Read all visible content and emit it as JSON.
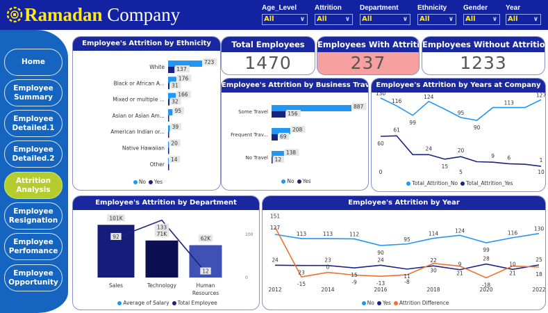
{
  "header": {
    "brand_part1": "Ramadan",
    "brand_part2": " Company",
    "slicers": [
      {
        "label": "Age_Level",
        "value": "All"
      },
      {
        "label": "Attrition",
        "value": "All"
      },
      {
        "label": "Department",
        "value": "All"
      },
      {
        "label": "Ethnicity",
        "value": "All"
      },
      {
        "label": "Gender",
        "value": "All"
      },
      {
        "label": "Year",
        "value": "All"
      }
    ]
  },
  "sidebar": {
    "items": [
      {
        "label": "Home"
      },
      {
        "label": "Employee Summary"
      },
      {
        "label": "Employee Detailed.1"
      },
      {
        "label": "Employee Detailed.2"
      },
      {
        "label": "Attrition Analysis",
        "active": true
      },
      {
        "label": "Employee Resignation"
      },
      {
        "label": "Employee Perfomance"
      },
      {
        "label": "Employee Opportunity"
      }
    ]
  },
  "kpis": [
    {
      "title": "Total Employees",
      "value": "1470"
    },
    {
      "title": "Employees With Attrition",
      "value": "237",
      "color": "#f7a0a0"
    },
    {
      "title": "Employees Without Attrition",
      "value": "1233"
    }
  ],
  "colors": {
    "no": "#2196f3",
    "yes": "#1a237e",
    "diff": "#f07030",
    "header": "#1222a0",
    "sidebar": "#1565c0",
    "active": "#b5cc2e"
  },
  "chart_data": [
    {
      "type": "bar",
      "orientation": "horizontal",
      "title": "Employee's Attrition by Ethnicity",
      "categories": [
        "White",
        "Black or African A...",
        "Mixed or multiple ...",
        "Asian or Asian Am...",
        "American Indian or...",
        "Native Hawaiian",
        "Other"
      ],
      "series": [
        {
          "name": "No",
          "values": [
            723,
            176,
            166,
            95,
            39,
            20,
            14
          ]
        },
        {
          "name": "Yes",
          "values": [
            137,
            31,
            32,
            null,
            null,
            null,
            null
          ]
        }
      ],
      "legend": "bottom"
    },
    {
      "type": "bar",
      "orientation": "horizontal",
      "title": "Employee's Attrition by Business Travel",
      "categories": [
        "Some Travel",
        "Frequent Trav...",
        "No Travel"
      ],
      "series": [
        {
          "name": "No",
          "values": [
            887,
            208,
            138
          ]
        },
        {
          "name": "Yes",
          "values": [
            156,
            69,
            12
          ]
        }
      ],
      "legend": "bottom"
    },
    {
      "type": "line",
      "title": "Employee's Attrition by Years at Company",
      "x": [
        0,
        1,
        2,
        3,
        4,
        5,
        6,
        7,
        8,
        9,
        10
      ],
      "xticks": [
        "0",
        "5",
        "10"
      ],
      "series": [
        {
          "name": "Total_Attrition_No",
          "values": [
            130,
            116,
            99,
            124,
            110,
            95,
            90,
            113,
            113,
            113,
            127
          ],
          "labels": [
            "130",
            "116",
            "99",
            "124",
            "",
            "95",
            "90",
            "",
            "113",
            "",
            "127"
          ]
        },
        {
          "name": "Total_Attrition_Yes",
          "values": [
            60,
            61,
            24,
            24,
            15,
            20,
            10,
            9,
            6,
            5,
            1
          ],
          "labels": [
            "60",
            "61",
            "",
            "24",
            "15",
            "20",
            "",
            "9",
            "6",
            "",
            "1"
          ]
        }
      ],
      "legend": "bottom"
    },
    {
      "type": "bar+line",
      "title": "Employee's Attrition by Department",
      "categories": [
        "Sales",
        "Technology",
        "Human Resources"
      ],
      "series": [
        {
          "name": "Average of Salary",
          "values": [
            101,
            71,
            62
          ],
          "labels": [
            "101K",
            "71K",
            "62K"
          ]
        },
        {
          "name": "Total Employee",
          "values": [
            92,
            133,
            12
          ]
        }
      ],
      "y2ticks": [
        "100",
        "0"
      ],
      "legend": "bottom"
    },
    {
      "type": "line",
      "title": "Employee's Attrition by Year",
      "x": [
        2012,
        2013,
        2014,
        2015,
        2016,
        2017,
        2018,
        2019,
        2020,
        2021,
        2022
      ],
      "xticks": [
        "2012",
        "2014",
        "2016",
        "2018",
        "2020",
        "2022"
      ],
      "series": [
        {
          "name": "No",
          "values": [
            127,
            113,
            113,
            112,
            90,
            95,
            114,
            124,
            99,
            116,
            130
          ]
        },
        {
          "name": "Yes",
          "values": [
            24,
            23,
            23,
            15,
            24,
            11,
            22,
            9,
            28,
            10,
            25
          ]
        },
        {
          "name": "Attrition Difference",
          "values": [
            151,
            -15,
            0,
            -9,
            -13,
            -8,
            30,
            21,
            -18,
            21,
            18
          ]
        }
      ],
      "legend": "bottom"
    }
  ]
}
